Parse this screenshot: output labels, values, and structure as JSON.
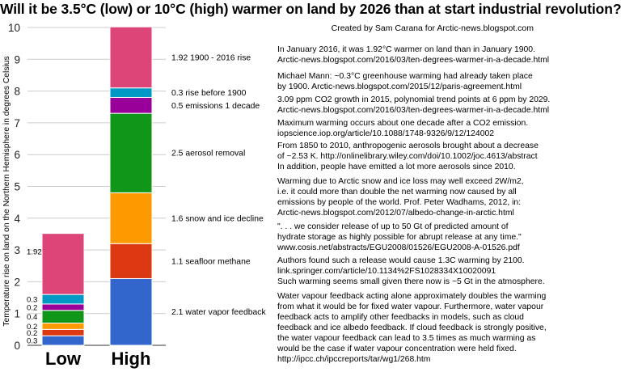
{
  "title": "Will it be 3.5°C (low) or 10°C (high) warmer on land by 2026 than at start industrial revolution?",
  "credit": "Created by Sam Carana for Arctic-news.blogspot.com",
  "chart_data": {
    "type": "bar",
    "stacked": true,
    "ylabel": "Temperature rise on land on the Northern Hemisphere in degrees Celsius",
    "ylim": [
      0,
      10
    ],
    "yticks": [
      0,
      1,
      2,
      3,
      4,
      5,
      6,
      7,
      8,
      9,
      10
    ],
    "grid": true,
    "categories": [
      "Low",
      "High"
    ],
    "series": [
      {
        "name": "water vapor feedback",
        "color": "#3366cc",
        "values": [
          0.3,
          2.1
        ]
      },
      {
        "name": "seafloor methane",
        "color": "#dc3912",
        "values": [
          0.2,
          1.1
        ]
      },
      {
        "name": "snow and ice decline",
        "color": "#ff9900",
        "values": [
          0.2,
          1.6
        ]
      },
      {
        "name": "aerosol removal",
        "color": "#109618",
        "values": [
          0.4,
          2.5
        ]
      },
      {
        "name": "emissions 1 decade",
        "color": "#990099",
        "values": [
          0.2,
          0.5
        ]
      },
      {
        "name": "rise before 1900",
        "color": "#0099c6",
        "values": [
          0.3,
          0.3
        ]
      },
      {
        "name": "1900 - 2016 rise",
        "color": "#dd4477",
        "values": [
          1.92,
          1.92
        ]
      }
    ],
    "low_labels": [
      "0.3",
      "0.2",
      "0.2",
      "0.4",
      "0.2",
      "0.3",
      "1.92"
    ],
    "high_labels": [
      "2.1 water vapor feedback",
      "1.1 seafloor methane",
      "1.6 snow and ice decline",
      "2.5 aerosol removal",
      "0.5 emissions 1 decade",
      "0.3 rise before 1900",
      "1.92 1900 - 2016 rise"
    ]
  },
  "notes": [
    {
      "lines": [
        "In January 2016, it was 1.92°C warmer on land than in January 1900.",
        "Arctic-news.blogspot.com/2016/03/ten-degrees-warmer-in-a-decade.html"
      ]
    },
    {
      "lines": [
        "Michael Mann: ~0.3°C greenhouse warming had already taken place",
        "by 1900.     Arctic-news.blogspot.com/2015/12/paris-agreement.html"
      ]
    },
    {
      "lines": [
        "3.09 ppm CO2 growth in 2015, polynomial trend points at 6 ppm by 2029.",
        "Arctic-news.blogspot.com/2016/03/ten-degrees-warmer-in-a-decade.html"
      ]
    },
    {
      "lines": [
        "Maximum warming occurs about one decade after a CO2 emission.",
        "iopscience.iop.org/article/10.1088/1748-9326/9/12/124002"
      ]
    },
    {
      "lines": [
        "From 1850 to 2010, anthropogenic aerosols brought about a decrease",
        "of ~2.53 K. http://onlinelibrary.wiley.com/doi/10.1002/joc.4613/abstract",
        "In addition, people have emitted a lot more aerosols since 2010."
      ]
    },
    {
      "lines": [
        "Warming due to Arctic snow and ice loss may well exceed 2W/m2,",
        "i.e. it could more than double the net warming now caused by all",
        "emissions by people of the world. Prof. Peter Wadhams, 2012, in:",
        "Arctic-news.blogspot.com/2012/07/albedo-change-in-arctic.html"
      ]
    },
    {
      "lines": [
        "\". . . we consider release of up to 50 Gt of predicted amount of",
        "hydrate storage as highly possible for abrupt release at any time.\"",
        "www.cosis.net/abstracts/EGU2008/01526/EGU2008-A-01526.pdf"
      ]
    },
    {
      "lines": [
        "Authors found such a release would cause 1.3C warming by 2100.",
        "link.springer.com/article/10.1134%2FS1028334X10020091",
        "Such warming seems small given there now is ~5 Gt in the atmosphere."
      ]
    },
    {
      "lines": [
        "Water vapour feedback acting alone approximately doubles the warming",
        "from what it would be for fixed water vapour. Furthermore, water vapour",
        "feedback acts to amplify other feedbacks in models, such as cloud",
        "feedback and ice albedo feedback. If cloud feedback is strongly positive,",
        "the water vapour feedback can lead to 3.5 times as much warming as",
        "would be the case if water vapour concentration were held fixed.",
        "http://ipcc.ch/ipccreports/tar/wg1/268.htm"
      ]
    }
  ]
}
